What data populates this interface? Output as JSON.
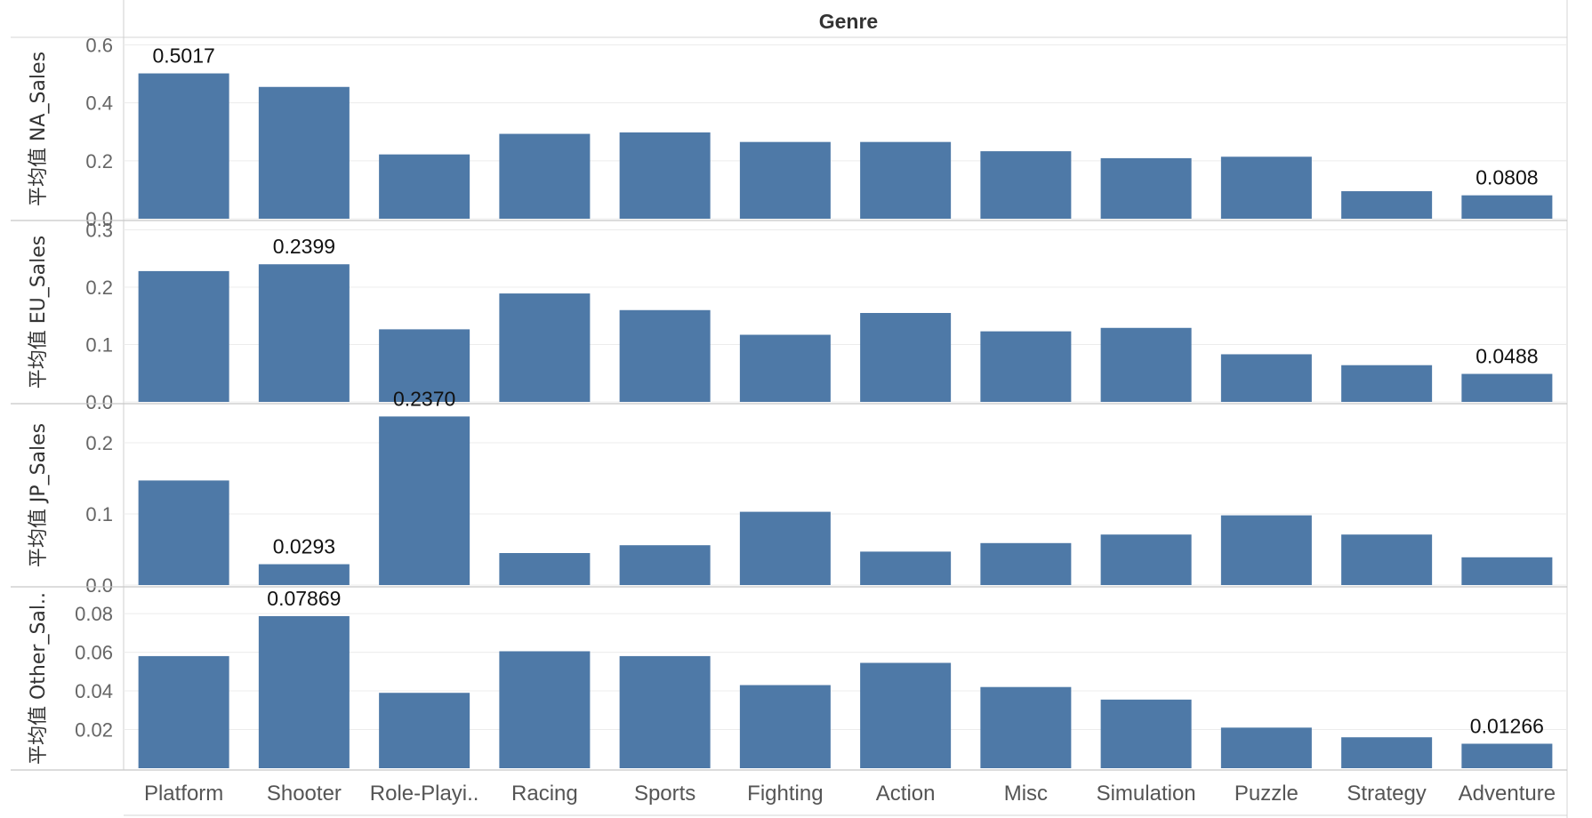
{
  "chart_data": {
    "type": "bar",
    "title": "Genre",
    "categories": [
      "Platform",
      "Shooter",
      "Role-Playi..",
      "Racing",
      "Sports",
      "Fighting",
      "Action",
      "Misc",
      "Simulation",
      "Puzzle",
      "Strategy",
      "Adventure"
    ],
    "bar_color": "#4E79A7",
    "grid": true,
    "panels": [
      {
        "ylabel": "平均值 NA_Sales",
        "ylim": [
          0,
          0.62
        ],
        "ticks": [
          0.0,
          0.2,
          0.4,
          0.6
        ],
        "tick_labels": [
          "0.0",
          "0.2",
          "0.4",
          "0.6"
        ],
        "values": [
          0.5017,
          0.455,
          0.222,
          0.293,
          0.298,
          0.265,
          0.265,
          0.233,
          0.209,
          0.214,
          0.095,
          0.0808
        ],
        "data_labels": {
          "0": "0.5017",
          "11": "0.0808"
        }
      },
      {
        "ylabel": "平均值 EU_Sales",
        "ylim": [
          0,
          0.31
        ],
        "ticks": [
          0.0,
          0.1,
          0.2,
          0.3
        ],
        "tick_labels": [
          "0.0",
          "0.1",
          "0.2",
          "0.3"
        ],
        "values": [
          0.228,
          0.2399,
          0.1265,
          0.189,
          0.16,
          0.117,
          0.155,
          0.123,
          0.129,
          0.083,
          0.064,
          0.0488
        ],
        "data_labels": {
          "1": "0.2399",
          "11": "0.0488"
        }
      },
      {
        "ylabel": "平均值 JP_Sales",
        "ylim": [
          0,
          0.25
        ],
        "ticks": [
          0.0,
          0.1,
          0.2
        ],
        "tick_labels": [
          "0.0",
          "0.1",
          "0.2"
        ],
        "values": [
          0.147,
          0.0293,
          0.237,
          0.045,
          0.056,
          0.103,
          0.047,
          0.059,
          0.071,
          0.098,
          0.071,
          0.039
        ],
        "data_labels": {
          "1": "0.0293",
          "2": "0.2370"
        }
      },
      {
        "ylabel": "平均值 Other_Sal..",
        "ylim": [
          0,
          0.092
        ],
        "ticks": [
          0.02,
          0.04,
          0.06,
          0.08
        ],
        "tick_labels": [
          "0.02",
          "0.04",
          "0.06",
          "0.08"
        ],
        "values": [
          0.058,
          0.07869,
          0.039,
          0.0605,
          0.058,
          0.043,
          0.0545,
          0.042,
          0.0355,
          0.021,
          0.016,
          0.01266
        ],
        "data_labels": {
          "1": "0.07869",
          "11": "0.01266"
        }
      }
    ]
  }
}
